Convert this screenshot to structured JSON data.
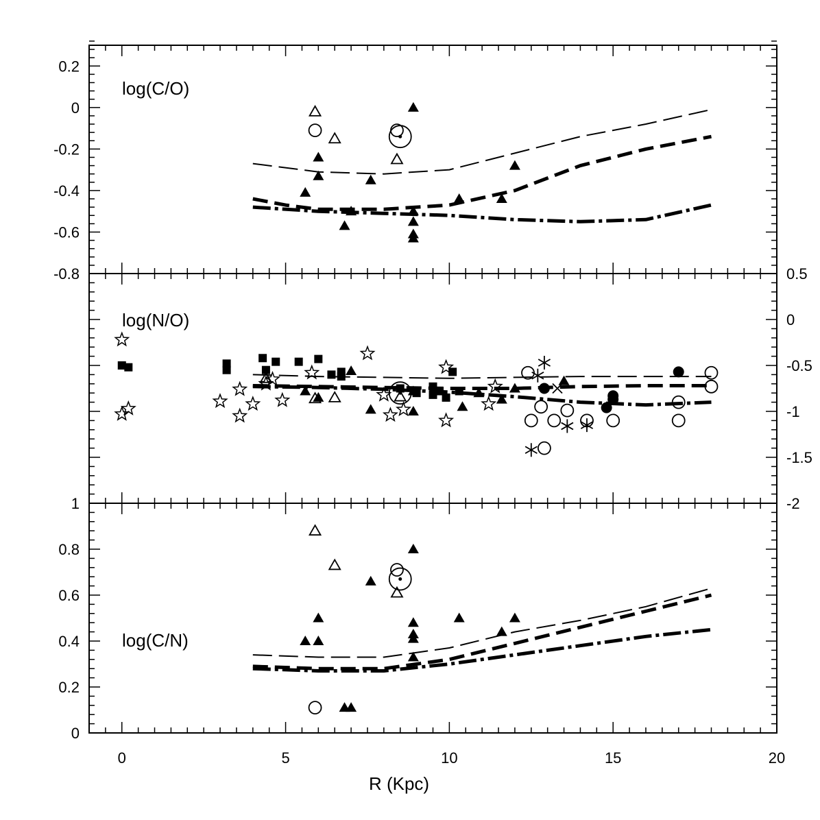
{
  "chart_data": [
    {
      "type": "scatter",
      "title": "log(C/O)",
      "xlabel": "R (Kpc)",
      "ylabel": "",
      "xlim": [
        -1,
        20
      ],
      "ylim": [
        -0.8,
        0.3
      ],
      "x_ticks": [
        "0",
        "5",
        "10",
        "15",
        "20"
      ],
      "y_ticks": [
        "0.2",
        "0",
        "-0.2",
        "-0.4",
        "-0.6",
        "-0.8"
      ],
      "y_tick_values": [
        0.2,
        0,
        -0.2,
        -0.4,
        -0.6,
        -0.8
      ],
      "tick_side": "left",
      "show_x_tick_labels": false,
      "grid": false,
      "markers": [
        {
          "shape": "tri_filled",
          "points": [
            [
              5.6,
              -0.41
            ],
            [
              6.0,
              -0.24
            ],
            [
              6.0,
              -0.33
            ],
            [
              6.8,
              -0.57
            ],
            [
              7.0,
              -0.5
            ],
            [
              7.6,
              -0.35
            ],
            [
              8.9,
              0.0
            ],
            [
              8.9,
              -0.5
            ],
            [
              8.9,
              -0.55
            ],
            [
              8.9,
              -0.61
            ],
            [
              8.9,
              -0.63
            ],
            [
              10.3,
              -0.44
            ],
            [
              11.6,
              -0.44
            ],
            [
              12.0,
              -0.28
            ]
          ]
        },
        {
          "shape": "tri_open",
          "points": [
            [
              5.9,
              -0.02
            ],
            [
              6.5,
              -0.15
            ],
            [
              8.4,
              -0.25
            ]
          ]
        },
        {
          "shape": "circle_open",
          "points": [
            [
              5.9,
              -0.11
            ],
            [
              8.4,
              -0.11
            ]
          ]
        },
        {
          "shape": "sun",
          "points": [
            [
              8.5,
              -0.14
            ]
          ]
        }
      ],
      "models": [
        {
          "style": "long-dash-thin",
          "points": [
            [
              4,
              -0.27
            ],
            [
              6,
              -0.31
            ],
            [
              8,
              -0.32
            ],
            [
              10,
              -0.3
            ],
            [
              12,
              -0.22
            ],
            [
              14,
              -0.14
            ],
            [
              16,
              -0.08
            ],
            [
              18,
              -0.01
            ]
          ]
        },
        {
          "style": "dash-thick",
          "points": [
            [
              4,
              -0.44
            ],
            [
              5,
              -0.47
            ],
            [
              6,
              -0.49
            ],
            [
              8,
              -0.49
            ],
            [
              10,
              -0.47
            ],
            [
              12,
              -0.4
            ],
            [
              14,
              -0.28
            ],
            [
              16,
              -0.2
            ],
            [
              18,
              -0.14
            ]
          ]
        },
        {
          "style": "dash-dot-thick",
          "points": [
            [
              4,
              -0.48
            ],
            [
              6,
              -0.5
            ],
            [
              8,
              -0.51
            ],
            [
              10,
              -0.52
            ],
            [
              12,
              -0.54
            ],
            [
              14,
              -0.55
            ],
            [
              16,
              -0.54
            ],
            [
              18,
              -0.47
            ]
          ]
        }
      ]
    },
    {
      "type": "scatter",
      "title": "log(N/O)",
      "xlabel": "R (Kpc)",
      "ylabel": "",
      "xlim": [
        -1,
        20
      ],
      "ylim": [
        -2,
        0.5
      ],
      "x_ticks": [
        "0",
        "5",
        "10",
        "15",
        "20"
      ],
      "y_ticks": [
        "0.5",
        "0",
        "-0.5",
        "-1",
        "-1.5",
        "-2"
      ],
      "y_tick_values": [
        0.5,
        0,
        -0.5,
        -1,
        -1.5,
        -2
      ],
      "tick_side": "right",
      "show_x_tick_labels": false,
      "grid": false,
      "markers": [
        {
          "shape": "star_open",
          "points": [
            [
              0.0,
              -0.22
            ],
            [
              0.0,
              -1.03
            ],
            [
              0.2,
              -0.97
            ],
            [
              3.0,
              -0.89
            ],
            [
              3.6,
              -0.76
            ],
            [
              3.6,
              -1.05
            ],
            [
              4.0,
              -0.92
            ],
            [
              4.4,
              -0.7
            ],
            [
              4.6,
              -0.65
            ],
            [
              4.9,
              -0.88
            ],
            [
              5.8,
              -0.58
            ],
            [
              7.5,
              -0.37
            ],
            [
              8.0,
              -0.82
            ],
            [
              8.2,
              -1.04
            ],
            [
              8.6,
              -0.98
            ],
            [
              9.9,
              -0.52
            ],
            [
              9.9,
              -1.1
            ],
            [
              11.2,
              -0.92
            ],
            [
              11.4,
              -0.73
            ]
          ]
        },
        {
          "shape": "square_filled",
          "points": [
            [
              0.0,
              -0.5
            ],
            [
              0.2,
              -0.52
            ],
            [
              3.2,
              -0.48
            ],
            [
              3.2,
              -0.55
            ],
            [
              4.3,
              -0.42
            ],
            [
              4.4,
              -0.55
            ],
            [
              4.7,
              -0.46
            ],
            [
              5.4,
              -0.46
            ],
            [
              6.0,
              -0.43
            ],
            [
              6.4,
              -0.6
            ],
            [
              6.7,
              -0.57
            ],
            [
              6.7,
              -0.62
            ],
            [
              8.5,
              -0.75
            ],
            [
              9.0,
              -0.8
            ],
            [
              9.5,
              -0.73
            ],
            [
              9.5,
              -0.82
            ],
            [
              9.7,
              -0.78
            ],
            [
              9.9,
              -0.85
            ],
            [
              10.1,
              -0.57
            ],
            [
              10.3,
              -0.78
            ]
          ]
        },
        {
          "shape": "tri_filled",
          "points": [
            [
              5.6,
              -0.78
            ],
            [
              6.0,
              -0.85
            ],
            [
              7.0,
              -0.56
            ],
            [
              7.6,
              -0.98
            ],
            [
              8.9,
              -0.78
            ],
            [
              8.9,
              -1.0
            ],
            [
              10.4,
              -0.95
            ],
            [
              10.9,
              -0.8
            ],
            [
              11.6,
              -0.87
            ],
            [
              12.0,
              -0.75
            ],
            [
              13.5,
              -0.67
            ]
          ]
        },
        {
          "shape": "tri_open",
          "points": [
            [
              4.4,
              -0.64
            ],
            [
              5.9,
              -0.86
            ],
            [
              6.5,
              -0.85
            ],
            [
              8.5,
              -0.84
            ]
          ]
        },
        {
          "shape": "circle_open",
          "points": [
            [
              12.4,
              -0.58
            ],
            [
              12.5,
              -1.1
            ],
            [
              12.8,
              -0.95
            ],
            [
              12.9,
              -1.4
            ],
            [
              13.2,
              -1.1
            ],
            [
              13.6,
              -0.99
            ],
            [
              14.2,
              -1.1
            ],
            [
              15.0,
              -1.1
            ],
            [
              17.0,
              -0.9
            ],
            [
              17.0,
              -1.1
            ],
            [
              18.0,
              -0.58
            ],
            [
              18.0,
              -0.73
            ]
          ]
        },
        {
          "shape": "circle_filled",
          "points": [
            [
              12.9,
              -0.75
            ],
            [
              14.8,
              -0.96
            ],
            [
              15.0,
              -0.83
            ],
            [
              15.0,
              -0.87
            ],
            [
              17.0,
              -0.57
            ]
          ]
        },
        {
          "shape": "asterisk",
          "points": [
            [
              12.5,
              -1.42
            ],
            [
              12.7,
              -0.61
            ],
            [
              12.9,
              -0.47
            ],
            [
              13.6,
              -1.16
            ],
            [
              14.2,
              -1.15
            ]
          ]
        },
        {
          "shape": "cross",
          "points": [
            [
              13.3,
              -0.75
            ]
          ]
        },
        {
          "shape": "sun",
          "points": [
            [
              8.5,
              -0.8
            ]
          ]
        }
      ],
      "models": [
        {
          "style": "long-dash-thin",
          "points": [
            [
              4,
              -0.6
            ],
            [
              6,
              -0.62
            ],
            [
              8,
              -0.63
            ],
            [
              10,
              -0.64
            ],
            [
              12,
              -0.63
            ],
            [
              14,
              -0.62
            ],
            [
              16,
              -0.62
            ],
            [
              18,
              -0.62
            ]
          ]
        },
        {
          "style": "dash-thick",
          "points": [
            [
              4,
              -0.72
            ],
            [
              6,
              -0.73
            ],
            [
              8,
              -0.74
            ],
            [
              10,
              -0.75
            ],
            [
              12,
              -0.75
            ],
            [
              14,
              -0.73
            ],
            [
              16,
              -0.72
            ],
            [
              18,
              -0.72
            ]
          ]
        },
        {
          "style": "dash-dot-thick",
          "points": [
            [
              4,
              -0.73
            ],
            [
              6,
              -0.74
            ],
            [
              8,
              -0.76
            ],
            [
              10,
              -0.79
            ],
            [
              12,
              -0.84
            ],
            [
              14,
              -0.9
            ],
            [
              16,
              -0.93
            ],
            [
              18,
              -0.9
            ]
          ]
        }
      ]
    },
    {
      "type": "scatter",
      "title": "log(C/N)",
      "xlabel": "R (Kpc)",
      "ylabel": "",
      "xlim": [
        -1,
        20
      ],
      "ylim": [
        0,
        1
      ],
      "x_ticks": [
        "0",
        "5",
        "10",
        "15",
        "20"
      ],
      "y_ticks": [
        "1",
        "0.8",
        "0.6",
        "0.4",
        "0.2",
        "0"
      ],
      "y_tick_values": [
        1,
        0.8,
        0.6,
        0.4,
        0.2,
        0
      ],
      "tick_side": "left",
      "show_x_tick_labels": true,
      "grid": false,
      "markers": [
        {
          "shape": "tri_filled",
          "points": [
            [
              5.6,
              0.4
            ],
            [
              6.0,
              0.4
            ],
            [
              6.0,
              0.5
            ],
            [
              6.8,
              0.11
            ],
            [
              7.0,
              0.11
            ],
            [
              7.6,
              0.66
            ],
            [
              8.9,
              0.33
            ],
            [
              8.9,
              0.41
            ],
            [
              8.9,
              0.43
            ],
            [
              8.9,
              0.48
            ],
            [
              8.9,
              0.8
            ],
            [
              10.3,
              0.5
            ],
            [
              11.6,
              0.44
            ],
            [
              12.0,
              0.5
            ]
          ]
        },
        {
          "shape": "tri_open",
          "points": [
            [
              5.9,
              0.88
            ],
            [
              6.5,
              0.73
            ],
            [
              8.4,
              0.61
            ]
          ]
        },
        {
          "shape": "circle_open",
          "points": [
            [
              5.9,
              0.11
            ],
            [
              8.4,
              0.71
            ]
          ]
        },
        {
          "shape": "sun",
          "points": [
            [
              8.5,
              0.67
            ]
          ]
        }
      ],
      "models": [
        {
          "style": "long-dash-thin",
          "points": [
            [
              4,
              0.34
            ],
            [
              6,
              0.33
            ],
            [
              8,
              0.33
            ],
            [
              10,
              0.37
            ],
            [
              12,
              0.44
            ],
            [
              14,
              0.49
            ],
            [
              16,
              0.55
            ],
            [
              18,
              0.63
            ]
          ]
        },
        {
          "style": "dash-thick",
          "points": [
            [
              4,
              0.29
            ],
            [
              6,
              0.28
            ],
            [
              8,
              0.28
            ],
            [
              10,
              0.32
            ],
            [
              12,
              0.39
            ],
            [
              14,
              0.46
            ],
            [
              16,
              0.53
            ],
            [
              18,
              0.6
            ]
          ]
        },
        {
          "style": "dash-dot-thick",
          "points": [
            [
              4,
              0.28
            ],
            [
              6,
              0.27
            ],
            [
              8,
              0.27
            ],
            [
              10,
              0.3
            ],
            [
              12,
              0.34
            ],
            [
              14,
              0.38
            ],
            [
              16,
              0.42
            ],
            [
              18,
              0.45
            ]
          ]
        }
      ]
    }
  ]
}
